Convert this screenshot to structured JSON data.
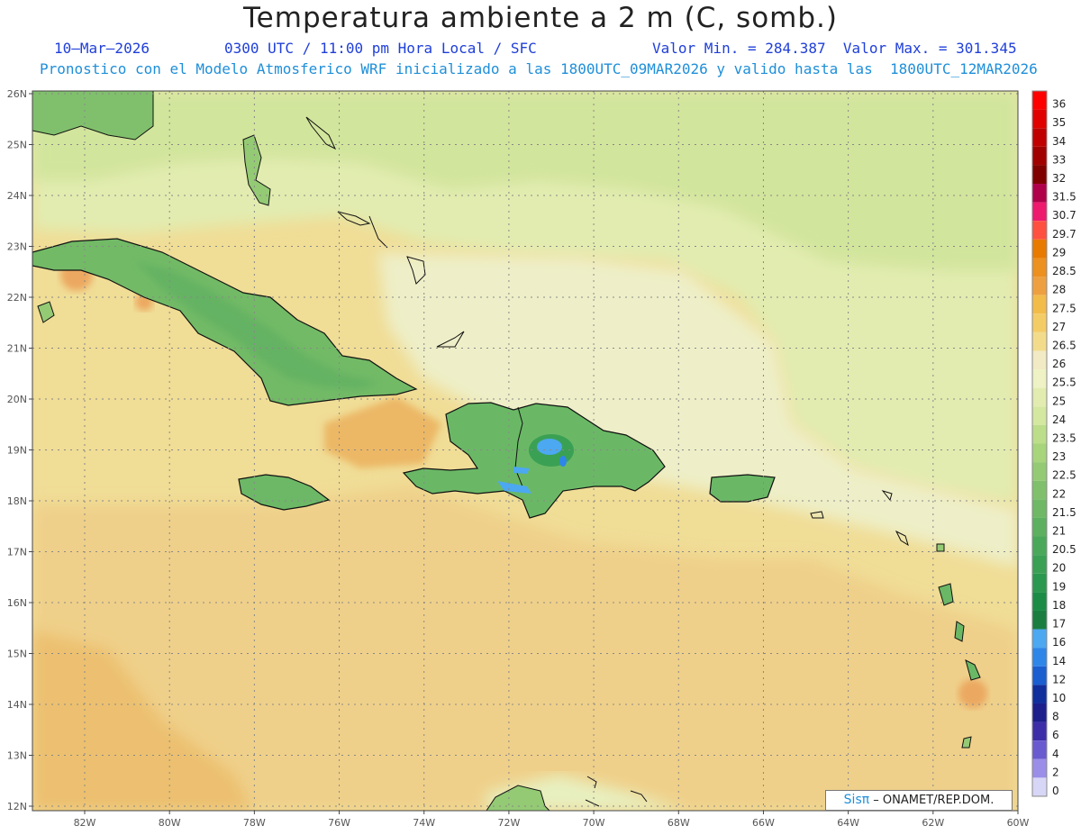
{
  "title": "Temperatura ambiente a 2 m (C, somb.)",
  "subtitle": {
    "date": "10–Mar–2026",
    "time": "0300 UTC / 11:00 pm Hora Local / SFC",
    "minmax": "Valor Min. = 284.387  Valor Max. = 301.345",
    "model": "Pronostico con el Modelo Atmosferico WRF inicializado a las 1800UTC_09MAR2026 y valido hasta las  1800UTC_12MAR2026"
  },
  "axes": {
    "lat_labels": [
      "26N",
      "25N",
      "24N",
      "23N",
      "22N",
      "21N",
      "20N",
      "19N",
      "18N",
      "17N",
      "16N",
      "15N",
      "14N",
      "13N",
      "12N"
    ],
    "lon_labels": [
      "82W",
      "80W",
      "78W",
      "76W",
      "74W",
      "72W",
      "70W",
      "68W",
      "66W",
      "64W",
      "62W",
      "60W"
    ]
  },
  "colorbar": {
    "labels": [
      "36",
      "35",
      "34",
      "33",
      "32",
      "31.5",
      "30.7",
      "29.7",
      "29",
      "28.5",
      "28",
      "27.5",
      "27",
      "26.5",
      "26",
      "25.5",
      "25",
      "24",
      "23.5",
      "23",
      "22.5",
      "22",
      "21.5",
      "21",
      "20.5",
      "20",
      "19",
      "18",
      "17",
      "16",
      "14",
      "12",
      "10",
      "8",
      "6",
      "4",
      "2",
      "0"
    ],
    "colors": [
      "#ff0000",
      "#e00000",
      "#c00000",
      "#a00000",
      "#800000",
      "#b0004a",
      "#ee1a6e",
      "#ff5040",
      "#e87a00",
      "#ec9020",
      "#eea040",
      "#f2bc4a",
      "#f4cc66",
      "#f2dc8c",
      "#f2eac4",
      "#eef2c4",
      "#e2ecb0",
      "#d4e8a0",
      "#bcde8a",
      "#a8d47c",
      "#94ca74",
      "#80c06c",
      "#6eb866",
      "#5cb060",
      "#4aa85a",
      "#3aa054",
      "#2a984e",
      "#1a8c46",
      "#1a7e40",
      "#4ca8f0",
      "#2e86e8",
      "#1a5ed0",
      "#102e9c",
      "#1c1e8c",
      "#3c2ea8",
      "#6a5ad0",
      "#9a8ee8",
      "#d8d6f6"
    ]
  },
  "regions": {
    "islands_color": "#66b46a",
    "ocean_base": "#f0e0a0"
  },
  "credit": {
    "brand": "Sisπ",
    "text": " –  ONAMET/REP.DOM."
  }
}
